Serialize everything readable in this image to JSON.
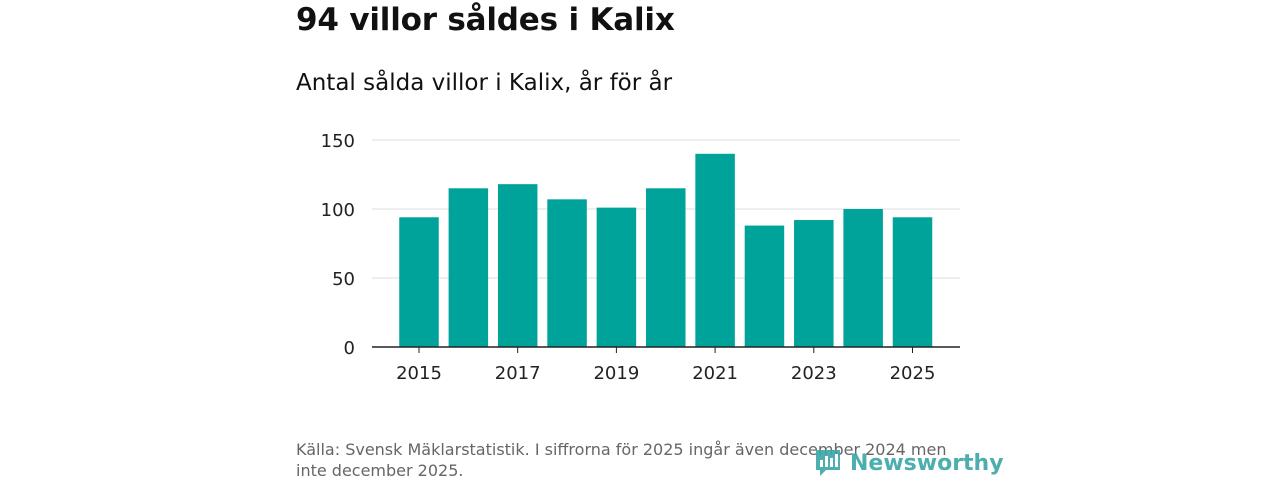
{
  "title": "94 villor såldes i Kalix",
  "subtitle": "Antal sålda villor i Kalix, år för år",
  "source": "Källa: Svensk Mäklarstatistik. I siffrorna för 2025 ingår även december 2024 men inte december 2025.",
  "brand": "Newsworthy",
  "colors": {
    "bar": "#00a39a",
    "grid": "#dddddd",
    "axis": "#222222",
    "brand": "#3aa6a6"
  },
  "chart_data": {
    "type": "bar",
    "categories": [
      "2015",
      "2016",
      "2017",
      "2018",
      "2019",
      "2020",
      "2021",
      "2022",
      "2023",
      "2024",
      "2025"
    ],
    "values": [
      94,
      115,
      118,
      107,
      101,
      115,
      140,
      88,
      92,
      100,
      94
    ],
    "x_tick_labels": [
      "2015",
      "2017",
      "2019",
      "2021",
      "2023",
      "2025"
    ],
    "y_ticks": [
      0,
      50,
      100,
      150
    ],
    "ylim": [
      0,
      150
    ],
    "grid": true,
    "title": "94 villor såldes i Kalix",
    "subtitle": "Antal sålda villor i Kalix, år för år"
  }
}
